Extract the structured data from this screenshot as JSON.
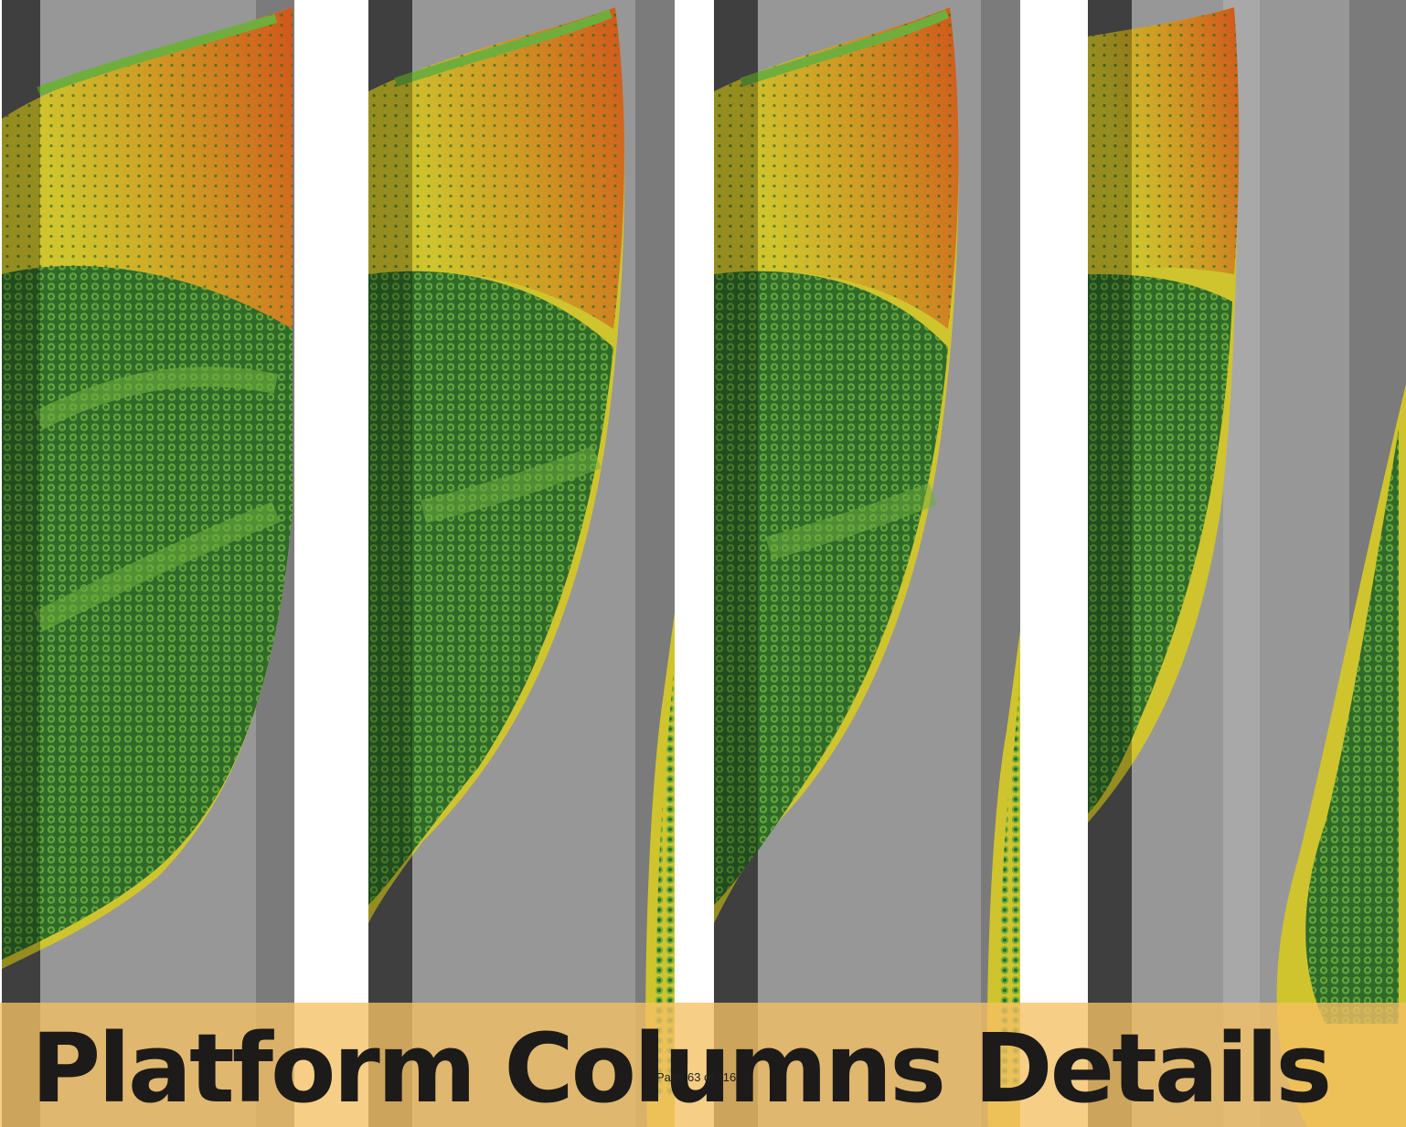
{
  "document": {
    "title": "Platform Columns Details",
    "page_number": "Page 63 of 116"
  },
  "figure": {
    "description_icon": "hexagon-point-cloud-render",
    "colors": {
      "background_grey": "#979797",
      "column_dark": "#585858",
      "column_mid": "#7b7b7b",
      "light_band": "#a8a8a8",
      "green_dark": "#2f6a2a",
      "green_light": "#6fae3d",
      "yellow": "#d2c52a",
      "orange": "#d05b1e",
      "banner": "#f5c064"
    }
  }
}
